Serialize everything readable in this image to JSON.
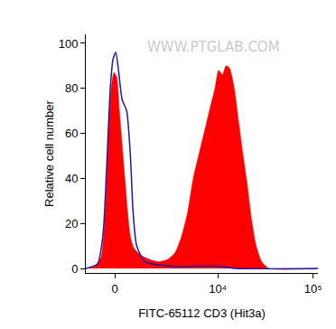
{
  "chart_data": {
    "type": "histogram",
    "x_label": "FITC-65112 CD3 (Hit3a)",
    "y_label": "Relative cell number",
    "annotations": [
      "WWW.PTGLAB.COM"
    ],
    "xlim": [
      -1280,
      112000
    ],
    "xticks": [
      0,
      {
        "value": 10000,
        "label": "10⁴"
      },
      {
        "value": 100000,
        "label": "10⁵"
      }
    ],
    "ylim": [
      -2,
      104
    ],
    "yticks": [
      0,
      20,
      40,
      60,
      80,
      100
    ],
    "grid": false,
    "series": [
      {
        "type": "area",
        "color": "#ff0000",
        "x": [
          -1280,
          -840,
          -570,
          -372,
          -261,
          -148,
          -37,
          74,
          186,
          298,
          412,
          528,
          647,
          805,
          1105,
          1580,
          2130,
          2780,
          3400,
          4020,
          4730,
          5440,
          6390,
          7320,
          8350,
          9330,
          10200,
          11200,
          12200,
          13300,
          14900,
          16600,
          18500,
          20300,
          22600,
          25300,
          28900,
          34500,
          112000
        ],
        "values": [
          0,
          1,
          5,
          30,
          60,
          80,
          87,
          85,
          70,
          55,
          40,
          25,
          14,
          9,
          6,
          4,
          3,
          4,
          7,
          14,
          25,
          40,
          52,
          62,
          72,
          80,
          88,
          86,
          90,
          89,
          80,
          65,
          50,
          38,
          22,
          10,
          3,
          0,
          0
        ]
      },
      {
        "type": "line",
        "color": "#1a1aa8",
        "x": [
          -1280,
          -727,
          -488,
          -335,
          -186,
          -74,
          37,
          148,
          298,
          488,
          647,
          766,
          931,
          1340,
          3160,
          10000,
          15600,
          112000
        ],
        "values": [
          0,
          2,
          15,
          45,
          80,
          93,
          96,
          88,
          75,
          70,
          50,
          25,
          10,
          3,
          1,
          1,
          0,
          0
        ]
      }
    ]
  }
}
